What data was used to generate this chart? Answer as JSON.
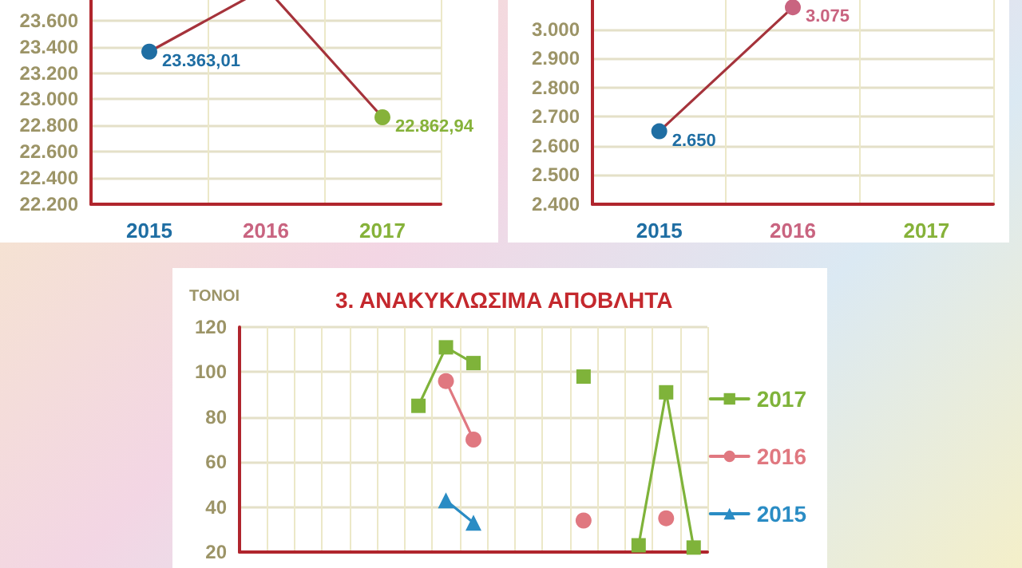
{
  "chart_data": [
    {
      "type": "line",
      "categories": [
        "2015",
        "2016",
        "2017"
      ],
      "series": [
        {
          "color": "#a5333b",
          "colors": [
            "#1f6ea3",
            "#c96480",
            "#86b23a"
          ],
          "values": [
            23363.01,
            23850,
            22862.94
          ],
          "value_labels": [
            "23.363,01",
            null,
            "22.862,94"
          ]
        }
      ],
      "ylim": [
        22200,
        24000
      ],
      "yticks": [
        {
          "value": 22200,
          "label": "22.200"
        },
        {
          "value": 22400,
          "label": "22.400"
        },
        {
          "value": 22600,
          "label": "22.600"
        },
        {
          "value": 22800,
          "label": "22.800"
        },
        {
          "value": 23000,
          "label": "23.000"
        },
        {
          "value": 23200,
          "label": "23.200"
        },
        {
          "value": 23400,
          "label": "23.400"
        },
        {
          "value": 23600,
          "label": "23.600"
        }
      ],
      "grid": true,
      "marker": "circle"
    },
    {
      "type": "line",
      "categories": [
        "2015",
        "2016",
        "2017"
      ],
      "series": [
        {
          "color": "#a5333b",
          "colors": [
            "#1f6ea3",
            "#c96480",
            "#86b23a"
          ],
          "values": [
            2650,
            3075,
            null
          ],
          "value_labels": [
            "2.650",
            "3.075",
            null
          ]
        }
      ],
      "ylim": [
        2400,
        3100
      ],
      "yticks": [
        {
          "value": 2400,
          "label": "2.400"
        },
        {
          "value": 2500,
          "label": "2.500"
        },
        {
          "value": 2600,
          "label": "2.600"
        },
        {
          "value": 2700,
          "label": "2.700"
        },
        {
          "value": 2800,
          "label": "2.800"
        },
        {
          "value": 2900,
          "label": "2.900"
        },
        {
          "value": 3000,
          "label": "3.000"
        }
      ],
      "grid": true,
      "marker": "circle"
    },
    {
      "type": "line",
      "title": "3. ΑΝΑΚΥΚΛΩΣΙΜΑ ΑΠΟΒΛΗΤΑ",
      "ylabel": "ΤΟΝΟΙ",
      "categories": [
        null,
        null,
        null,
        null,
        null,
        null,
        null,
        null,
        null,
        null,
        null,
        null,
        null,
        null,
        null,
        null,
        null
      ],
      "series": [
        {
          "name": "2017",
          "color": "#7fb33a",
          "marker": "square",
          "values": [
            null,
            null,
            null,
            null,
            null,
            null,
            85,
            111,
            104,
            null,
            null,
            null,
            98,
            null,
            23,
            91,
            22
          ]
        },
        {
          "name": "2016",
          "color": "#e07880",
          "marker": "circle",
          "values": [
            null,
            null,
            null,
            null,
            null,
            null,
            null,
            96,
            70,
            null,
            null,
            null,
            34,
            null,
            null,
            35,
            null
          ]
        },
        {
          "name": "2015",
          "color": "#2a8cc4",
          "marker": "triangle",
          "values": [
            null,
            null,
            null,
            null,
            null,
            null,
            null,
            43,
            33,
            null,
            null,
            null,
            null,
            null,
            null,
            null,
            null
          ]
        }
      ],
      "ylim": [
        20,
        120
      ],
      "yticks": [
        20,
        40,
        60,
        80,
        100,
        120
      ],
      "grid": true,
      "legend": "right"
    }
  ]
}
